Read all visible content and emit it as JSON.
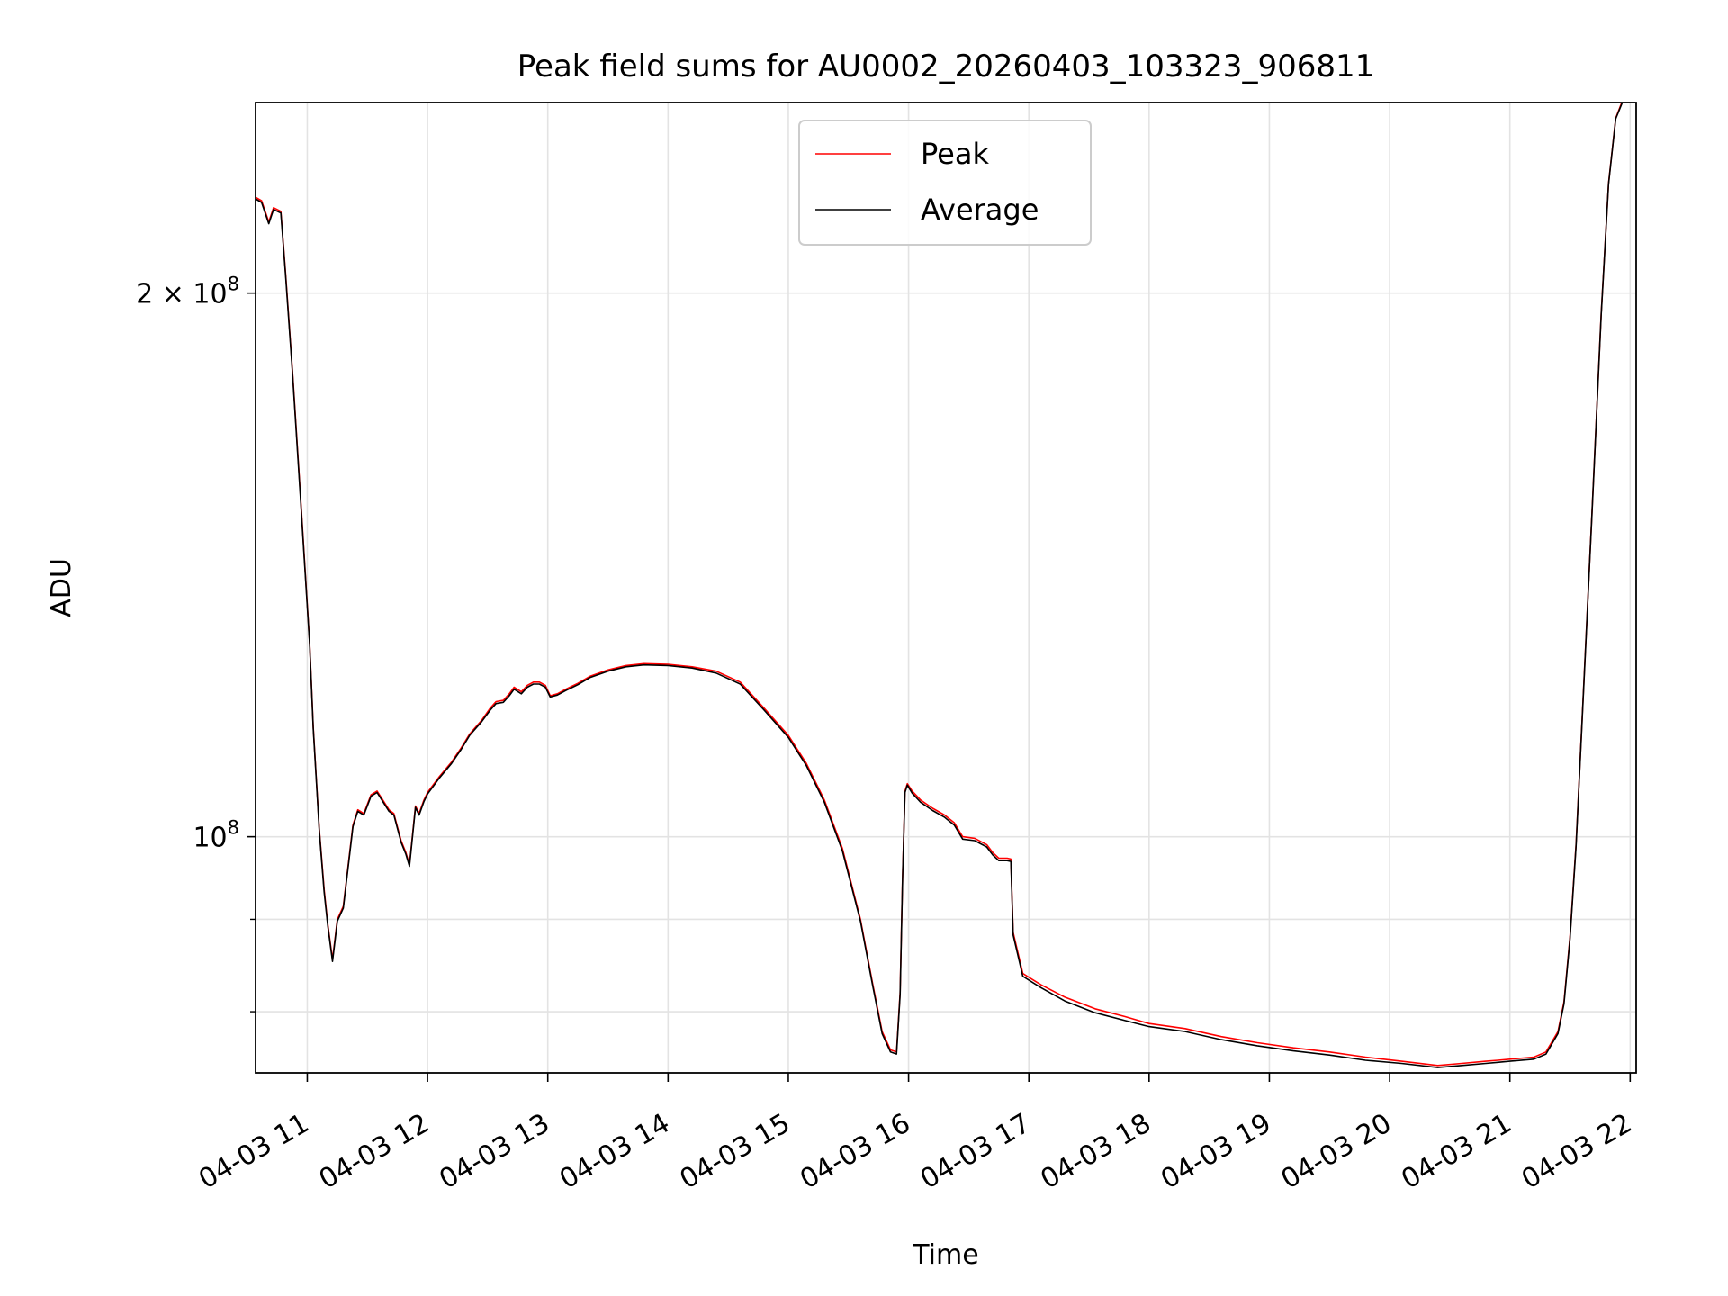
{
  "chart_data": {
    "type": "line",
    "title": "Peak field sums for AU0002_20260403_103323_906811",
    "xlabel": "Time",
    "ylabel": "ADU",
    "y_scale": "log",
    "xlim_hours": [
      10.57,
      22.05
    ],
    "ylim": [
      74000000,
      255000000
    ],
    "grid": true,
    "legend_position": "upper center",
    "x_ticks": [
      {
        "hour": 11,
        "label": "04-03 11"
      },
      {
        "hour": 12,
        "label": "04-03 12"
      },
      {
        "hour": 13,
        "label": "04-03 13"
      },
      {
        "hour": 14,
        "label": "04-03 14"
      },
      {
        "hour": 15,
        "label": "04-03 15"
      },
      {
        "hour": 16,
        "label": "04-03 16"
      },
      {
        "hour": 17,
        "label": "04-03 17"
      },
      {
        "hour": 18,
        "label": "04-03 18"
      },
      {
        "hour": 19,
        "label": "04-03 19"
      },
      {
        "hour": 20,
        "label": "04-03 20"
      },
      {
        "hour": 21,
        "label": "04-03 21"
      },
      {
        "hour": 22,
        "label": "04-03 22"
      }
    ],
    "y_major_ticks": [
      {
        "value": 100000000,
        "base": "10",
        "exp": "8",
        "prefix": ""
      },
      {
        "value": 200000000,
        "base": "10",
        "exp": "8",
        "prefix": "2 × "
      }
    ],
    "y_minor_ticks": [
      80000000,
      90000000
    ],
    "series": [
      {
        "name": "Peak",
        "color": "#ff0000",
        "x_hours": [
          10.57,
          10.62,
          10.68,
          10.72,
          10.78,
          10.82,
          10.88,
          10.95,
          11.02,
          11.05,
          11.1,
          11.14,
          11.17,
          11.21,
          11.25,
          11.3,
          11.38,
          11.42,
          11.47,
          11.53,
          11.58,
          11.62,
          11.68,
          11.72,
          11.78,
          11.82,
          11.85,
          11.9,
          11.93,
          11.97,
          12.0,
          12.1,
          12.2,
          12.28,
          12.35,
          12.45,
          12.52,
          12.57,
          12.63,
          12.68,
          12.72,
          12.78,
          12.83,
          12.88,
          12.93,
          12.98,
          13.02,
          13.08,
          13.15,
          13.25,
          13.35,
          13.5,
          13.65,
          13.8,
          14.0,
          14.2,
          14.4,
          14.6,
          14.8,
          15.0,
          15.15,
          15.3,
          15.45,
          15.6,
          15.7,
          15.78,
          15.85,
          15.9,
          15.93,
          15.95,
          15.97,
          15.99,
          16.03,
          16.1,
          16.2,
          16.3,
          16.38,
          16.45,
          16.55,
          16.65,
          16.7,
          16.75,
          16.82,
          16.85,
          16.87,
          16.95,
          17.1,
          17.3,
          17.55,
          17.8,
          18.0,
          18.3,
          18.6,
          18.9,
          19.2,
          19.5,
          19.8,
          20.1,
          20.4,
          20.6,
          20.8,
          20.9,
          21.0,
          21.2,
          21.3,
          21.4,
          21.45,
          21.5,
          21.55,
          21.6,
          21.68,
          21.76,
          21.82,
          21.88,
          21.94
        ],
        "values": [
          226000000,
          225000000,
          219000000,
          223000000,
          222000000,
          205000000,
          180000000,
          152000000,
          128000000,
          115000000,
          101000000,
          93500000,
          89500000,
          85500000,
          90000000,
          91500000,
          101500000,
          103500000,
          103000000,
          105500000,
          106000000,
          105000000,
          103500000,
          103000000,
          99500000,
          98000000,
          96500000,
          104000000,
          103000000,
          104800000,
          105800000,
          108000000,
          110000000,
          112000000,
          114000000,
          116000000,
          117800000,
          118800000,
          119000000,
          120000000,
          121000000,
          120300000,
          121300000,
          121800000,
          121800000,
          121300000,
          119700000,
          120000000,
          120700000,
          121600000,
          122700000,
          123700000,
          124400000,
          124700000,
          124600000,
          124200000,
          123500000,
          121800000,
          117800000,
          113800000,
          109800000,
          104800000,
          98500000,
          90000000,
          83000000,
          78000000,
          76200000,
          76000000,
          82000000,
          95000000,
          106000000,
          107000000,
          106000000,
          104800000,
          103700000,
          102800000,
          101800000,
          100000000,
          99800000,
          99000000,
          98000000,
          97300000,
          97300000,
          97200000,
          88500000,
          84000000,
          82800000,
          81500000,
          80300000,
          79500000,
          78800000,
          78300000,
          77500000,
          76900000,
          76400000,
          76000000,
          75500000,
          75100000,
          74700000,
          74900000,
          75100000,
          75200000,
          75300000,
          75500000,
          76000000,
          78000000,
          81000000,
          88000000,
          99000000,
          116000000,
          150000000,
          195000000,
          230000000,
          250000000,
          256000000
        ]
      },
      {
        "name": "Average",
        "color": "#000000",
        "x_hours": [
          10.57,
          10.62,
          10.68,
          10.72,
          10.78,
          10.82,
          10.88,
          10.95,
          11.02,
          11.05,
          11.1,
          11.14,
          11.17,
          11.21,
          11.25,
          11.3,
          11.38,
          11.42,
          11.47,
          11.53,
          11.58,
          11.62,
          11.68,
          11.72,
          11.78,
          11.82,
          11.85,
          11.9,
          11.93,
          11.97,
          12.0,
          12.1,
          12.2,
          12.28,
          12.35,
          12.45,
          12.52,
          12.57,
          12.63,
          12.68,
          12.72,
          12.78,
          12.83,
          12.88,
          12.93,
          12.98,
          13.02,
          13.08,
          13.15,
          13.25,
          13.35,
          13.5,
          13.65,
          13.8,
          14.0,
          14.2,
          14.4,
          14.6,
          14.8,
          15.0,
          15.15,
          15.3,
          15.45,
          15.6,
          15.7,
          15.78,
          15.85,
          15.9,
          15.93,
          15.95,
          15.97,
          15.99,
          16.03,
          16.1,
          16.2,
          16.3,
          16.38,
          16.45,
          16.55,
          16.65,
          16.7,
          16.75,
          16.82,
          16.85,
          16.87,
          16.95,
          17.1,
          17.3,
          17.55,
          17.8,
          18.0,
          18.3,
          18.6,
          18.9,
          19.2,
          19.5,
          19.8,
          20.1,
          20.4,
          20.6,
          20.8,
          20.9,
          21.0,
          21.2,
          21.3,
          21.4,
          21.45,
          21.5,
          21.55,
          21.6,
          21.68,
          21.76,
          21.82,
          21.88,
          21.94
        ],
        "values": [
          225500000,
          224500000,
          218500000,
          222500000,
          221500000,
          204500000,
          179500000,
          151500000,
          127800000,
          114800000,
          100800000,
          93200000,
          89300000,
          85300000,
          89800000,
          91300000,
          101300000,
          103300000,
          102800000,
          105300000,
          105800000,
          104800000,
          103300000,
          102800000,
          99300000,
          97800000,
          96300000,
          103800000,
          102800000,
          104600000,
          105600000,
          107800000,
          109800000,
          111800000,
          113800000,
          115800000,
          117500000,
          118500000,
          118700000,
          119700000,
          120700000,
          120000000,
          121000000,
          121500000,
          121500000,
          121000000,
          119500000,
          119800000,
          120500000,
          121400000,
          122500000,
          123500000,
          124200000,
          124500000,
          124400000,
          124000000,
          123200000,
          121500000,
          117500000,
          113500000,
          109500000,
          104500000,
          98200000,
          89800000,
          82800000,
          77800000,
          76000000,
          75800000,
          81800000,
          94800000,
          105800000,
          106800000,
          105700000,
          104500000,
          103400000,
          102500000,
          101500000,
          99700000,
          99500000,
          98700000,
          97700000,
          97000000,
          97000000,
          96900000,
          88200000,
          83700000,
          82500000,
          81100000,
          79900000,
          79100000,
          78500000,
          78000000,
          77200000,
          76600000,
          76100000,
          75700000,
          75200000,
          74900000,
          74500000,
          74700000,
          74900000,
          75000000,
          75100000,
          75300000,
          75800000,
          77800000,
          80800000,
          87800000,
          98800000,
          115800000,
          149800000,
          194800000,
          229800000,
          249800000,
          255500000
        ]
      }
    ]
  }
}
